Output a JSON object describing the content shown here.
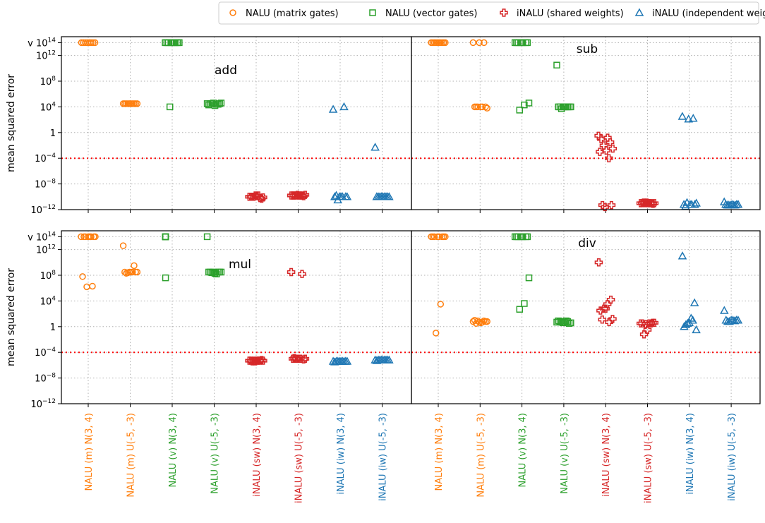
{
  "chart_data": {
    "type": "scatter",
    "title": "",
    "ylabel": "mean squared error",
    "yscale": "log10",
    "ylim_log10": [
      -12,
      14
    ],
    "grid": true,
    "legend_placement": "top",
    "threshold_log10": -4,
    "threshold_color": "#ff0000",
    "yticks": [
      {
        "value": 14,
        "prefix": "v ",
        "base": "10",
        "exp": "14"
      },
      {
        "value": 12,
        "prefix": "",
        "base": "10",
        "exp": "12"
      },
      {
        "value": 8,
        "prefix": "",
        "base": "10",
        "exp": "8"
      },
      {
        "value": 4,
        "prefix": "",
        "base": "10",
        "exp": "4"
      },
      {
        "value": 0,
        "prefix": "",
        "base": "1",
        "exp": ""
      },
      {
        "value": -4,
        "prefix": "",
        "base": "10",
        "exp": "−4"
      },
      {
        "value": -8,
        "prefix": "",
        "base": "10",
        "exp": "−8"
      },
      {
        "value": -12,
        "prefix": "",
        "base": "10",
        "exp": "−12"
      }
    ],
    "categories": [
      {
        "label": "NALU (m) N(3, 4)",
        "series": 0
      },
      {
        "label": "NALU (m) U(-5, -3)",
        "series": 0
      },
      {
        "label": "NALU (v) N(3, 4)",
        "series": 1
      },
      {
        "label": "NALU (v) U(-5, -3)",
        "series": 1
      },
      {
        "label": "iNALU (sw) N(3, 4)",
        "series": 2
      },
      {
        "label": "iNALU (sw) U(-5, -3)",
        "series": 2
      },
      {
        "label": "iNALU (iw) N(3, 4)",
        "series": 3
      },
      {
        "label": "iNALU (iw) U(-5, -3)",
        "series": 3
      }
    ],
    "series": [
      {
        "name": "NALU (matrix gates)",
        "marker": "circle",
        "color": "#ff7f0e"
      },
      {
        "name": "NALU (vector gates)",
        "marker": "square",
        "color": "#2ca02c"
      },
      {
        "name": "iNALU (shared weights)",
        "marker": "plus",
        "color": "#d62728"
      },
      {
        "name": "iNALU (independent weights)",
        "marker": "triangle",
        "color": "#1f77b4"
      }
    ],
    "panels": [
      {
        "title": "add",
        "log10_mse": [
          [
            14,
            14,
            14,
            14,
            14,
            14,
            14,
            14
          ],
          [
            4.5,
            4.5,
            4.5,
            4.5,
            4.5,
            4.5,
            4.5,
            4.5,
            4.5,
            4.5
          ],
          [
            14,
            14,
            14,
            14,
            14,
            14,
            14,
            14,
            14,
            4
          ],
          [
            4.5,
            4.4,
            4.6,
            4.3,
            4.5,
            4.2,
            4.5,
            4.6,
            4.4,
            4.5
          ],
          [
            -10,
            -10.2,
            -9.8,
            -10,
            -10.3,
            -9.9,
            -10,
            -10.1,
            -9.8,
            -10
          ],
          [
            -9.8,
            -9.8,
            -9.7,
            -9.8,
            -9.9,
            -9.8,
            -9.8,
            -9.7,
            -9.8,
            -9.8
          ],
          [
            3.6,
            4,
            -10,
            -10,
            -10,
            -10,
            -9.8,
            -10,
            -10,
            -10.5
          ],
          [
            -2.3,
            -10,
            -10,
            -10,
            -10,
            -10,
            -10,
            -10,
            -10,
            -10
          ]
        ]
      },
      {
        "title": "sub",
        "log10_mse": [
          [
            14,
            14,
            14,
            14,
            14,
            14,
            14,
            14,
            14,
            14
          ],
          [
            14,
            14,
            14,
            4,
            4,
            4,
            4,
            3.8,
            4,
            4
          ],
          [
            14,
            14,
            14,
            14,
            14,
            14,
            14,
            4.6,
            4.3,
            3.5
          ],
          [
            10.5,
            4,
            4,
            4,
            4,
            4,
            4,
            4,
            4,
            3.7
          ],
          [
            -0.5,
            -0.8,
            -1,
            -1.5,
            -2,
            -2.5,
            -2.8,
            -3,
            -4,
            -11.3,
            -11.3,
            -11.6
          ],
          [
            -11,
            -11,
            -10.9,
            -11,
            -11.1,
            -11,
            -10.9,
            -11,
            -11,
            -11
          ],
          [
            2.5,
            2.2,
            2.1,
            -11.2,
            -11.2,
            -11.2,
            -11.5,
            -11,
            -11.2,
            -10.9
          ],
          [
            -10.8,
            -11.3,
            -11.3,
            -11.2,
            -11.2,
            -11.2,
            -11.3,
            -11.2,
            -11.3,
            -11.3
          ]
        ]
      },
      {
        "title": "mul",
        "log10_mse": [
          [
            14,
            14,
            14,
            14,
            14,
            14,
            14,
            14,
            7.8,
            6.3,
            6.2
          ],
          [
            12.6,
            9.5,
            8.5,
            8.5,
            8.5,
            8.5,
            8.3,
            8.5,
            8.5,
            8.4
          ],
          [
            14,
            14,
            14,
            14,
            14,
            14,
            7.6
          ],
          [
            14,
            8.5,
            8.5,
            8.5,
            8.5,
            8.3,
            8.5,
            8.5,
            8.2,
            8.4
          ],
          [
            -5.3,
            -5.3,
            -5.4,
            -5.3,
            -5.2,
            -5.3,
            -5.4,
            -5.3,
            -5.3,
            -5.3
          ],
          [
            8.5,
            8.2,
            -5,
            -5,
            -5.1,
            -5,
            -4.9,
            -5,
            -5,
            -5
          ],
          [
            -5.4,
            -5.4,
            -5.4,
            -5.5,
            -5.4,
            -5.4,
            -5.4,
            -5.4,
            -5.4,
            -5.4
          ],
          [
            -5.2,
            -5.2,
            -5.2,
            -5.3,
            -5.2,
            -5.2,
            -5.2,
            -5.2,
            -5.2,
            -5.2
          ]
        ]
      },
      {
        "title": "div",
        "log10_mse": [
          [
            14,
            14,
            14,
            14,
            14,
            14,
            14,
            14,
            3.5,
            -1
          ],
          [
            0.8,
            0.9,
            0.7,
            1,
            0.8,
            0.6,
            0.5,
            0.8,
            0.7,
            0.9
          ],
          [
            14,
            14,
            14,
            14,
            14,
            14,
            14,
            7.6,
            3.6,
            2.7
          ],
          [
            0.7,
            0.8,
            0.6,
            0.9,
            0.5,
            0.7,
            0.8,
            0.6,
            0.9,
            0.7
          ],
          [
            10,
            4.2,
            3.5,
            2.8,
            2.5,
            1.2,
            0.7,
            2.8,
            1.1
          ],
          [
            0.5,
            0.6,
            0.5,
            0.4,
            0.5,
            0.6,
            0.5,
            -0.5,
            -1.2
          ],
          [
            11,
            3.7,
            1.3,
            0.5,
            0,
            -0.5,
            1,
            0.6,
            0.3
          ],
          [
            2.5,
            1,
            1,
            0.8,
            1,
            1,
            0.9,
            1,
            0.8
          ]
        ]
      }
    ]
  }
}
